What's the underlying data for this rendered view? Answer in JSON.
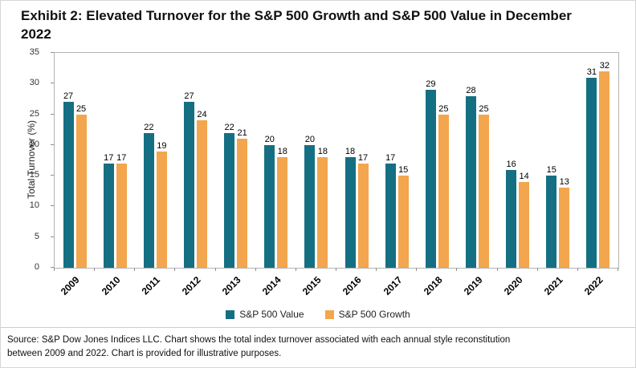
{
  "title": "Exhibit 2: Elevated Turnover for the S&P 500 Growth and S&P 500 Value in December 2022",
  "chart_data": {
    "type": "bar",
    "categories": [
      "2009",
      "2010",
      "2011",
      "2012",
      "2013",
      "2014",
      "2015",
      "2016",
      "2017",
      "2018",
      "2019",
      "2020",
      "2021",
      "2022"
    ],
    "series": [
      {
        "name": "S&P 500 Value",
        "color": "#156f83",
        "values": [
          27,
          17,
          22,
          27,
          22,
          20,
          20,
          18,
          17,
          29,
          28,
          16,
          15,
          31
        ]
      },
      {
        "name": "S&P 500 Growth",
        "color": "#f3a64d",
        "values": [
          25,
          17,
          19,
          24,
          21,
          18,
          18,
          17,
          15,
          25,
          25,
          14,
          13,
          32
        ]
      }
    ],
    "title": "Exhibit 2: Elevated Turnover for the S&P 500 Growth and S&P 500 Value in December 2022",
    "xlabel": "",
    "ylabel": "Total Turnover (%)",
    "ylim": [
      0,
      35
    ],
    "ytick_step": 5,
    "grid": false,
    "legend_position": "bottom",
    "bar_value_labels": true
  },
  "footer": {
    "source_line1": "Source: S&P Dow Jones Indices LLC. Chart shows the total index turnover associated with each annual style reconstitution",
    "source_line2": "between 2009 and 2022. Chart is provided for illustrative purposes."
  }
}
